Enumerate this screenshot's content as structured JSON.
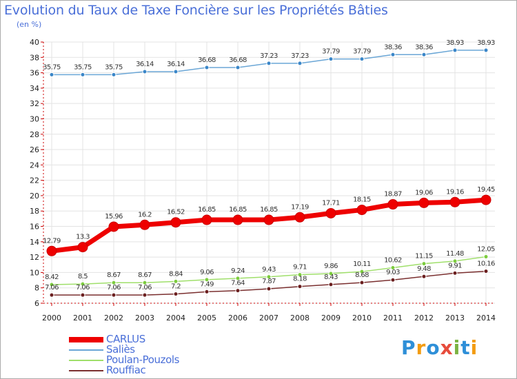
{
  "title": "Evolution du Taux de Taxe Foncière sur les Propriétés Bâties",
  "unit": "(en %)",
  "logo": {
    "letters": [
      "P",
      "r",
      "o",
      "x",
      "i",
      "t",
      "i"
    ],
    "colors": [
      "#2e8fd8",
      "#f39c12",
      "#2e8fd8",
      "#e74c3c",
      "#7cb342",
      "#2e8fd8",
      "#f39c12"
    ]
  },
  "chart_data": {
    "type": "line",
    "title": "Evolution du Taux de Taxe Foncière sur les Propriétés Bâties",
    "xlabel": "",
    "ylabel": "(en %)",
    "ylim": [
      6,
      40
    ],
    "yticks": [
      6,
      8,
      10,
      12,
      14,
      16,
      18,
      20,
      22,
      24,
      26,
      28,
      30,
      32,
      34,
      36,
      38,
      40
    ],
    "grid": true,
    "categories": [
      "2000",
      "2001",
      "2002",
      "2003",
      "2004",
      "2005",
      "2006",
      "2007",
      "2008",
      "2009",
      "2010",
      "2011",
      "2012",
      "2013",
      "2014"
    ],
    "series": [
      {
        "name": "Saliès",
        "color": "#6aa6d6",
        "marker": "#3a86c8",
        "width": 1.5,
        "radius": 3,
        "values": [
          35.75,
          35.75,
          35.75,
          36.14,
          36.14,
          36.68,
          36.68,
          37.23,
          37.23,
          37.79,
          37.79,
          38.36,
          38.36,
          38.93,
          38.93
        ],
        "labels": [
          "35.75",
          "35.75",
          "35.75",
          "36.14",
          "36.14",
          "36.68",
          "36.68",
          "37.23",
          "37.23",
          "37.79",
          "37.79",
          "38.36",
          "38.36",
          "38.93",
          "38.93"
        ]
      },
      {
        "name": "Poulan-Pouzols",
        "color": "#9fdf6a",
        "marker": "#7ccc3e",
        "width": 1.5,
        "radius": 3,
        "values": [
          8.42,
          8.5,
          8.67,
          8.67,
          8.84,
          9.06,
          9.24,
          9.43,
          9.71,
          9.86,
          10.11,
          10.62,
          11.15,
          11.48,
          12.05
        ],
        "labels": [
          "8.42",
          "8.5",
          "8.67",
          "8.67",
          "8.84",
          "9.06",
          "9.24",
          "9.43",
          "9.71",
          "9.86",
          "10.11",
          "10.62",
          "11.15",
          "11.48",
          "12.05"
        ]
      },
      {
        "name": "Rouffiac",
        "color": "#7a2f2f",
        "marker": "#6b1f1f",
        "width": 1.5,
        "radius": 3,
        "values": [
          7.06,
          7.06,
          7.06,
          7.06,
          7.2,
          7.49,
          7.64,
          7.87,
          8.18,
          8.43,
          8.68,
          9.03,
          9.48,
          9.91,
          10.16
        ],
        "labels": [
          "7.06",
          "7.06",
          "7.06",
          "7.06",
          "7.2",
          "7.49",
          "7.64",
          "7.87",
          "8.18",
          "8.43",
          "8.68",
          "9.03",
          "9.48",
          "9.91",
          "10.16"
        ]
      },
      {
        "name": "CARLUS",
        "color": "#ee0000",
        "marker": "#ee0000",
        "width": 7,
        "radius": 7,
        "values": [
          12.79,
          13.3,
          15.96,
          16.2,
          16.52,
          16.85,
          16.85,
          16.85,
          17.19,
          17.71,
          18.15,
          18.87,
          19.06,
          19.16,
          19.45
        ],
        "labels": [
          "12.79",
          "13.3",
          "15.96",
          "16.2",
          "16.52",
          "16.85",
          "16.85",
          "16.85",
          "17.19",
          "17.71",
          "18.15",
          "18.87",
          "19.06",
          "19.16",
          "19.45"
        ]
      }
    ],
    "legend": [
      "CARLUS",
      "Saliès",
      "Poulan-Pouzols",
      "Rouffiac"
    ]
  }
}
